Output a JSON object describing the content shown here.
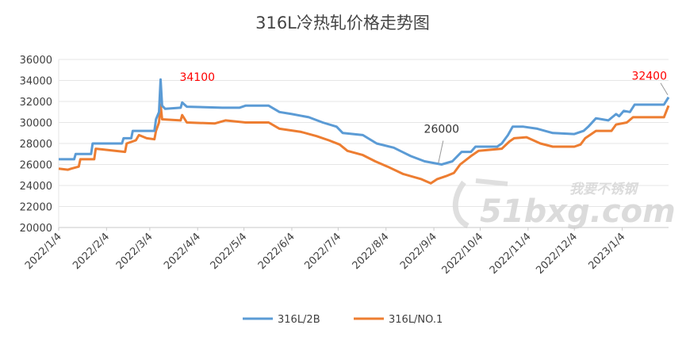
{
  "chart_data": {
    "type": "line",
    "title": "316L冷热轧价格走势图",
    "xlabel": "",
    "ylabel": "",
    "ylim": [
      20000,
      36000
    ],
    "y_ticks": [
      "36000",
      "34000",
      "32000",
      "30000",
      "28000",
      "26000",
      "24000",
      "22000",
      "20000"
    ],
    "x_ticks": [
      "2022/1/4",
      "2022/2/4",
      "2022/3/4",
      "2022/4/4",
      "2022/5/4",
      "2022/6/4",
      "2022/7/4",
      "2022/8/4",
      "2022/9/4",
      "2022/10/4",
      "2022/11/4",
      "2022/12/4",
      "2023/1/4"
    ],
    "grid": "horizontal",
    "legend": "bottom",
    "series": [
      {
        "name": "316L/2B",
        "color": "#5b9bd5",
        "points": [
          [
            "2022/1/4",
            26500
          ],
          [
            "2022/1/14",
            26500
          ],
          [
            "2022/1/15",
            27000
          ],
          [
            "2022/1/25",
            27000
          ],
          [
            "2022/1/26",
            28000
          ],
          [
            "2022/2/14",
            28000
          ],
          [
            "2022/2/15",
            28500
          ],
          [
            "2022/2/20",
            28500
          ],
          [
            "2022/2/21",
            29200
          ],
          [
            "2022/3/7",
            29200
          ],
          [
            "2022/3/8",
            30300
          ],
          [
            "2022/3/10",
            31000
          ],
          [
            "2022/3/11",
            34100
          ],
          [
            "2022/3/12",
            31600
          ],
          [
            "2022/3/14",
            31300
          ],
          [
            "2022/3/24",
            31400
          ],
          [
            "2022/3/25",
            31900
          ],
          [
            "2022/3/28",
            31500
          ],
          [
            "2022/4/20",
            31400
          ],
          [
            "2022/5/1",
            31400
          ],
          [
            "2022/5/5",
            31600
          ],
          [
            "2022/5/20",
            31600
          ],
          [
            "2022/5/27",
            31000
          ],
          [
            "2022/6/4",
            30800
          ],
          [
            "2022/6/15",
            30500
          ],
          [
            "2022/6/24",
            30000
          ],
          [
            "2022/7/3",
            29600
          ],
          [
            "2022/7/7",
            29000
          ],
          [
            "2022/7/20",
            28800
          ],
          [
            "2022/7/29",
            28000
          ],
          [
            "2022/8/9",
            27600
          ],
          [
            "2022/8/20",
            26800
          ],
          [
            "2022/8/29",
            26300
          ],
          [
            "2022/9/9",
            26000
          ],
          [
            "2022/9/16",
            26300
          ],
          [
            "2022/9/22",
            27200
          ],
          [
            "2022/9/28",
            27200
          ],
          [
            "2022/10/1",
            27700
          ],
          [
            "2022/10/15",
            27700
          ],
          [
            "2022/10/18",
            28000
          ],
          [
            "2022/10/22",
            28800
          ],
          [
            "2022/10/25",
            29600
          ],
          [
            "2022/11/1",
            29600
          ],
          [
            "2022/11/10",
            29400
          ],
          [
            "2022/11/20",
            29000
          ],
          [
            "2022/12/4",
            28900
          ],
          [
            "2022/12/10",
            29200
          ],
          [
            "2022/12/13",
            29600
          ],
          [
            "2022/12/18",
            30400
          ],
          [
            "2022/12/26",
            30200
          ],
          [
            "2022/12/31",
            30800
          ],
          [
            "2023/1/2",
            30600
          ],
          [
            "2023/1/5",
            31100
          ],
          [
            "2023/1/9",
            31000
          ],
          [
            "2023/1/12",
            31700
          ],
          [
            "2023/1/31",
            31700
          ],
          [
            "2023/2/3",
            32400
          ]
        ]
      },
      {
        "name": "316L/NO.1",
        "color": "#ed7d31",
        "points": [
          [
            "2022/1/4",
            25600
          ],
          [
            "2022/1/10",
            25500
          ],
          [
            "2022/1/12",
            25600
          ],
          [
            "2022/1/17",
            25800
          ],
          [
            "2022/1/18",
            26500
          ],
          [
            "2022/1/27",
            26500
          ],
          [
            "2022/1/28",
            27500
          ],
          [
            "2022/2/16",
            27200
          ],
          [
            "2022/2/17",
            28000
          ],
          [
            "2022/2/23",
            28300
          ],
          [
            "2022/2/25",
            28800
          ],
          [
            "2022/3/2",
            28500
          ],
          [
            "2022/3/7",
            28400
          ],
          [
            "2022/3/8",
            29200
          ],
          [
            "2022/3/10",
            30000
          ],
          [
            "2022/3/11",
            31700
          ],
          [
            "2022/3/12",
            30300
          ],
          [
            "2022/3/24",
            30200
          ],
          [
            "2022/3/25",
            30700
          ],
          [
            "2022/3/28",
            30000
          ],
          [
            "2022/4/15",
            29900
          ],
          [
            "2022/4/22",
            30200
          ],
          [
            "2022/5/5",
            30000
          ],
          [
            "2022/5/20",
            30000
          ],
          [
            "2022/5/27",
            29400
          ],
          [
            "2022/6/10",
            29100
          ],
          [
            "2022/6/20",
            28700
          ],
          [
            "2022/6/28",
            28300
          ],
          [
            "2022/7/5",
            27900
          ],
          [
            "2022/7/10",
            27300
          ],
          [
            "2022/7/20",
            26900
          ],
          [
            "2022/7/28",
            26300
          ],
          [
            "2022/8/5",
            25800
          ],
          [
            "2022/8/15",
            25100
          ],
          [
            "2022/8/27",
            24600
          ],
          [
            "2022/9/2",
            24200
          ],
          [
            "2022/9/6",
            24600
          ],
          [
            "2022/9/12",
            24900
          ],
          [
            "2022/9/17",
            25200
          ],
          [
            "2022/9/21",
            26000
          ],
          [
            "2022/9/28",
            26800
          ],
          [
            "2022/10/3",
            27300
          ],
          [
            "2022/10/18",
            27500
          ],
          [
            "2022/10/23",
            28200
          ],
          [
            "2022/10/26",
            28500
          ],
          [
            "2022/11/3",
            28600
          ],
          [
            "2022/11/12",
            28000
          ],
          [
            "2022/11/20",
            27700
          ],
          [
            "2022/12/4",
            27700
          ],
          [
            "2022/12/8",
            27900
          ],
          [
            "2022/12/11",
            28500
          ],
          [
            "2022/12/18",
            29200
          ],
          [
            "2022/12/28",
            29200
          ],
          [
            "2022/12/31",
            29800
          ],
          [
            "2023/1/7",
            30000
          ],
          [
            "2023/1/11",
            30500
          ],
          [
            "2023/1/31",
            30500
          ],
          [
            "2023/2/3",
            31600
          ]
        ]
      }
    ],
    "annotations": [
      {
        "text": "34100",
        "date": "2022/3/11",
        "value": 34100,
        "color": "#ff0000",
        "anchor": "right"
      },
      {
        "text": "26000",
        "date": "2022/9/9",
        "value": 26000,
        "color": "#333333",
        "anchor": "above"
      },
      {
        "text": "32400",
        "date": "2023/2/3",
        "value": 32400,
        "color": "#ff0000",
        "anchor": "above-left"
      }
    ]
  },
  "watermark": {
    "cn": "我要不锈钢",
    "en": "51bxg.com"
  }
}
